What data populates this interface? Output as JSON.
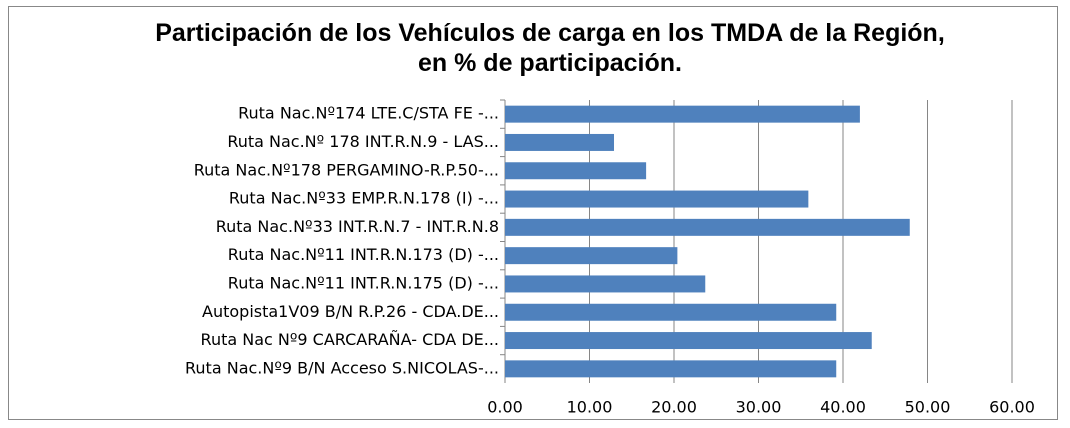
{
  "chart_data": {
    "type": "bar",
    "orientation": "horizontal",
    "title": "Participación de los Vehículos de carga en los TMDA de la Región, en % de participación.",
    "categories": [
      "Ruta Nac.Nº174 LTE.C/STA FE -...",
      "Ruta Nac.Nº 178 INT.R.N.9 - LAS...",
      "Ruta Nac.Nº178 PERGAMINO-R.P.50-...",
      "Ruta Nac.Nº33 EMP.R.N.178 (I) -...",
      "Ruta Nac.Nº33 INT.R.N.7 - INT.R.N.8",
      "Ruta Nac.Nº11 INT.R.N.173 (D) -...",
      "Ruta Nac.Nº11 INT.R.N.175 (D) -...",
      "Autopista1V09 B/N R.P.26 - CDA.DE...",
      "Ruta Nac Nº9 CARCARAÑA- CDA DE...",
      "Ruta Nac.Nº9 B/N Acceso S.NICOLAS-..."
    ],
    "values": [
      42.0,
      12.9,
      16.7,
      35.9,
      47.9,
      20.4,
      23.7,
      39.2,
      43.4,
      39.2
    ],
    "color": "#4f81bd",
    "xlim": [
      0,
      60
    ],
    "xticks": [
      {
        "value": 0,
        "label": "0.00"
      },
      {
        "value": 10,
        "label": "10.00"
      },
      {
        "value": 20,
        "label": "20.00"
      },
      {
        "value": 30,
        "label": "30.00"
      },
      {
        "value": 40,
        "label": "40.00"
      },
      {
        "value": 50,
        "label": "50.00"
      },
      {
        "value": 60,
        "label": "60.00"
      }
    ],
    "grid": true
  }
}
